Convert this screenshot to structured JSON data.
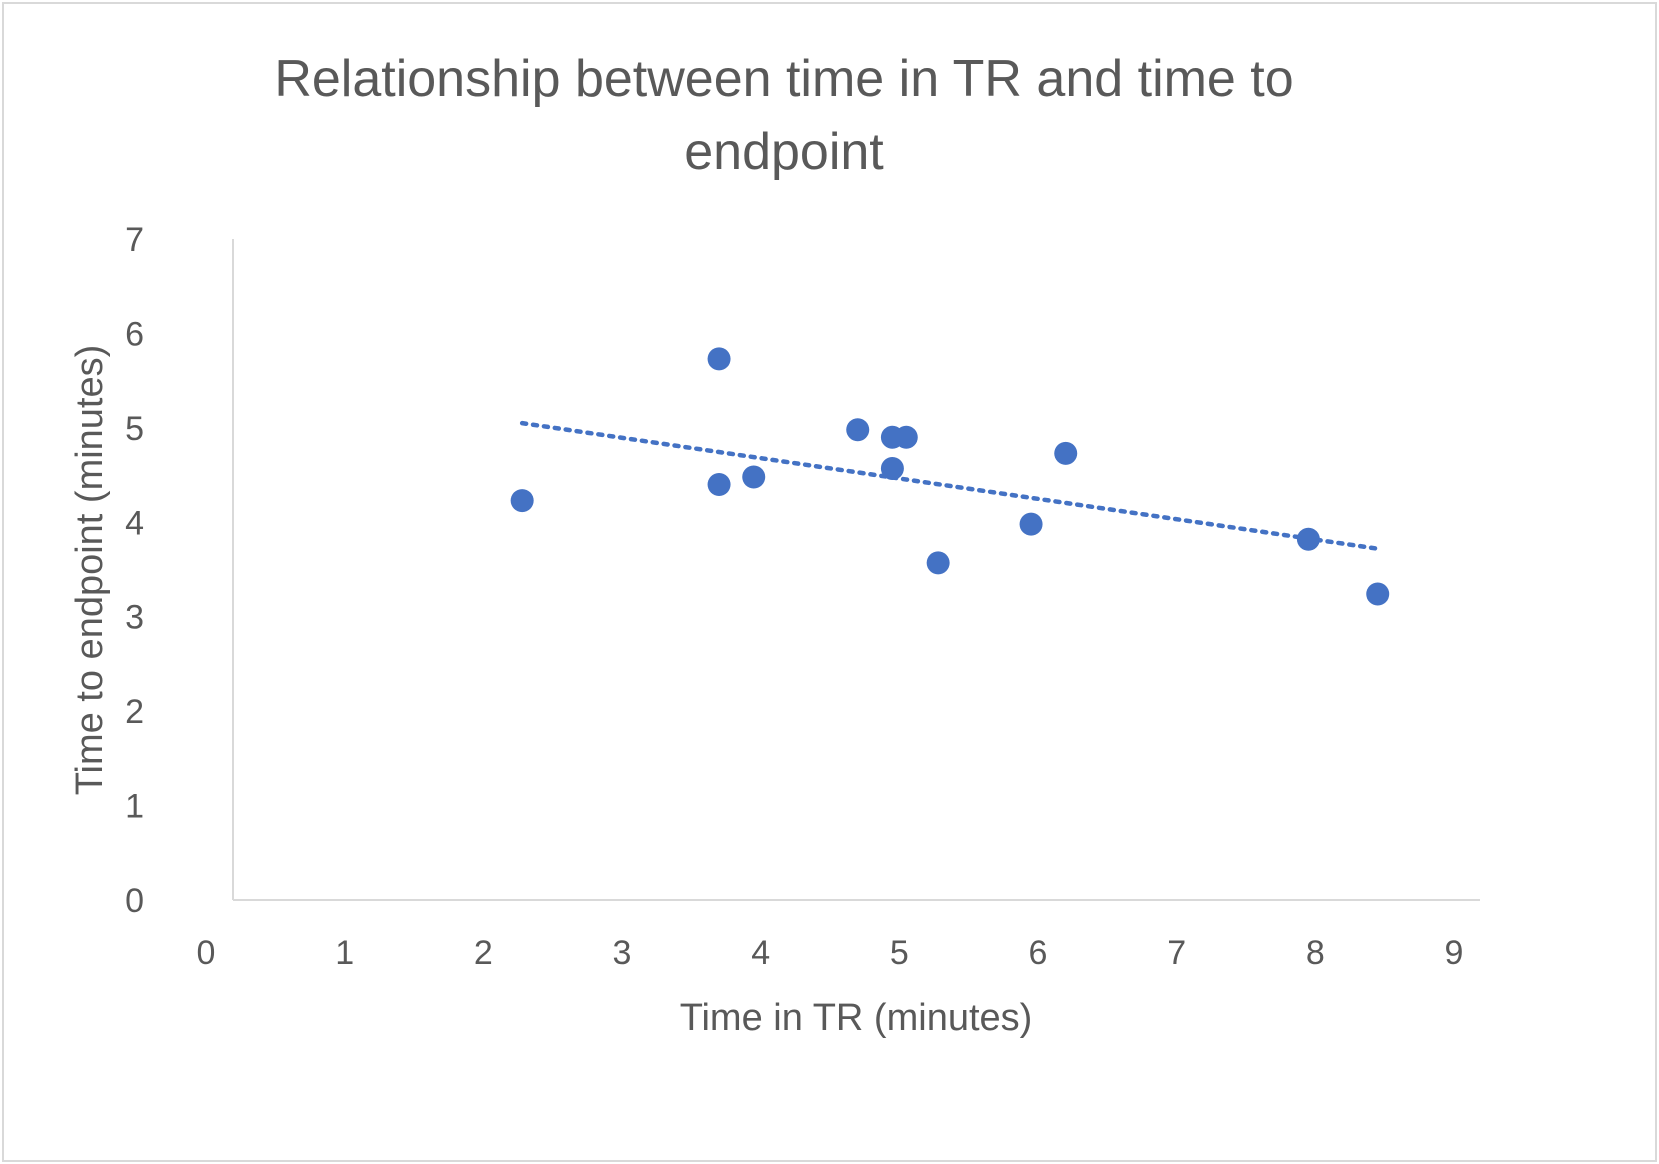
{
  "chart_data": {
    "type": "scatter",
    "title_lines": [
      "Relationship between time in TR and time to",
      "endpoint"
    ],
    "title": "Relationship between time in TR and time to endpoint",
    "xlabel": "Time in TR (minutes)",
    "ylabel": "Time to endpoint (minutes)",
    "xlim": [
      0,
      9
    ],
    "ylim": [
      0,
      7
    ],
    "x_ticks": [
      "0",
      "1",
      "2",
      "3",
      "4",
      "5",
      "6",
      "7",
      "8",
      "9"
    ],
    "y_ticks": [
      "0",
      "1",
      "2",
      "3",
      "4",
      "5",
      "6",
      "7"
    ],
    "grid": false,
    "legend": "none",
    "points": [
      {
        "x": 2.28,
        "y": 4.23
      },
      {
        "x": 3.7,
        "y": 5.73
      },
      {
        "x": 3.7,
        "y": 4.4
      },
      {
        "x": 3.95,
        "y": 4.48
      },
      {
        "x": 4.7,
        "y": 4.98
      },
      {
        "x": 4.95,
        "y": 4.9
      },
      {
        "x": 5.05,
        "y": 4.9
      },
      {
        "x": 4.95,
        "y": 4.57
      },
      {
        "x": 5.28,
        "y": 3.57
      },
      {
        "x": 5.95,
        "y": 3.98
      },
      {
        "x": 6.2,
        "y": 4.73
      },
      {
        "x": 7.95,
        "y": 3.82
      },
      {
        "x": 8.45,
        "y": 3.24
      }
    ],
    "trendline": {
      "type": "linear",
      "style": "dotted",
      "x": [
        2.28,
        8.45
      ],
      "y": [
        5.05,
        3.72
      ]
    },
    "colors": {
      "marker": "#4472C4",
      "axis": "#d9d9d9",
      "text": "#595959"
    }
  }
}
